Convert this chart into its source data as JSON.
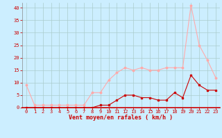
{
  "hours": [
    0,
    1,
    2,
    3,
    4,
    5,
    6,
    7,
    8,
    9,
    10,
    11,
    12,
    13,
    14,
    15,
    16,
    17,
    18,
    19,
    20,
    21,
    22,
    23
  ],
  "wind_avg": [
    0,
    0,
    0,
    0,
    0,
    0,
    0,
    0,
    0,
    1,
    1,
    3,
    5,
    5,
    4,
    4,
    3,
    3,
    6,
    4,
    13,
    9,
    7,
    7
  ],
  "wind_gust": [
    9,
    1,
    1,
    1,
    1,
    1,
    1,
    1,
    6,
    6,
    11,
    14,
    16,
    15,
    16,
    15,
    15,
    16,
    16,
    16,
    41,
    25,
    19,
    12
  ],
  "ylabel_values": [
    0,
    5,
    10,
    15,
    20,
    25,
    30,
    35,
    40
  ],
  "bg_color": "#cceeff",
  "grid_color": "#aacccc",
  "line_avg_color": "#cc0000",
  "line_gust_color": "#ffaaaa",
  "xlabel": "Vent moyen/en rafales ( km/h )",
  "ylim": [
    0,
    42
  ],
  "xlim": [
    -0.5,
    23.5
  ]
}
